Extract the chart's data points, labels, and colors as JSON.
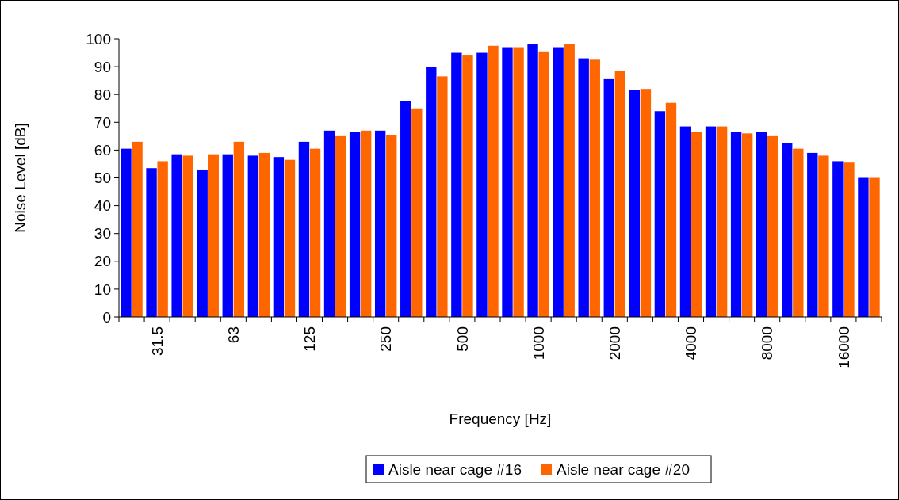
{
  "chart_data": {
    "type": "bar",
    "xlabel": "Frequency [Hz]",
    "ylabel": "Noise Level [dB]",
    "categories": [
      null,
      "31.5",
      null,
      null,
      "63",
      null,
      null,
      "125",
      null,
      null,
      "250",
      null,
      null,
      "500",
      null,
      null,
      "1000",
      null,
      null,
      "2000",
      null,
      null,
      "4000",
      null,
      null,
      "8000",
      null,
      null,
      "16000",
      null
    ],
    "series": [
      {
        "name": "Aisle near cage #16",
        "color": "#0000ff",
        "values": [
          60.5,
          53.5,
          58.5,
          53,
          58.5,
          58,
          57.5,
          63,
          67,
          66.5,
          67,
          77.5,
          90,
          95,
          95,
          97,
          98,
          97,
          93,
          85.5,
          81.5,
          74,
          68.5,
          68.5,
          66.5,
          66.5,
          62.5,
          59,
          56,
          50
        ]
      },
      {
        "name": "Aisle near cage #20",
        "color": "#ff6600",
        "values": [
          63,
          56,
          58,
          58.5,
          63,
          59,
          56.5,
          60.5,
          65,
          67,
          65.5,
          75,
          86.5,
          94,
          97.5,
          97,
          95.5,
          98,
          92.5,
          88.5,
          82,
          77,
          66.5,
          68.5,
          66,
          65,
          60.5,
          58,
          55.5,
          50
        ]
      }
    ],
    "ylim": [
      0,
      100
    ],
    "yticks": [
      0,
      10,
      20,
      30,
      40,
      50,
      60,
      70,
      80,
      90,
      100
    ],
    "grid": false,
    "legend": "bottom"
  }
}
